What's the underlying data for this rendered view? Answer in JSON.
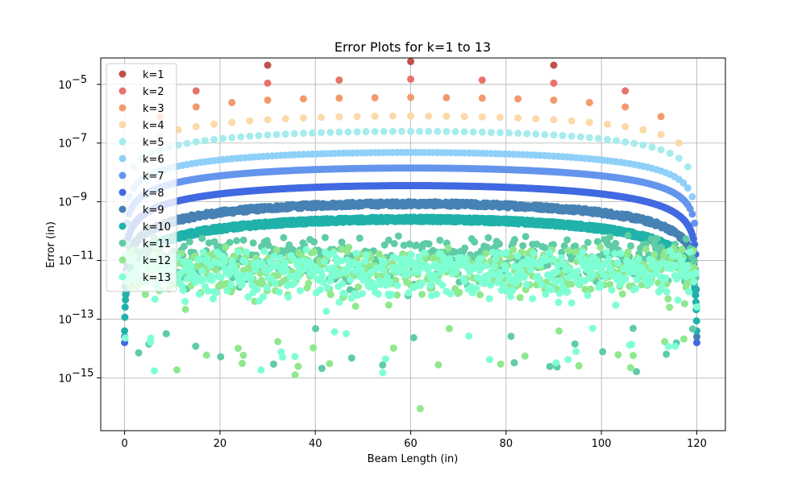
{
  "chart_data": {
    "type": "scatter",
    "title": "Error Plots for k=1 to 13",
    "xlabel": "Beam Length (in)",
    "ylabel": "Error (in)",
    "xlim": [
      -5,
      126
    ],
    "ylog_range": [
      -16.8,
      -4.1
    ],
    "x_ticks": [
      0,
      20,
      40,
      60,
      80,
      100,
      120
    ],
    "x_tick_labels": [
      "0",
      "20",
      "40",
      "60",
      "80",
      "100",
      "120"
    ],
    "y_ticks_exp": [
      -15,
      -13,
      -11,
      -9,
      -7,
      -5
    ],
    "y_tick_labels": [
      "10",
      "10",
      "10",
      "10",
      "10",
      "10"
    ],
    "y_tick_sups": [
      "−15",
      "−13",
      "−11",
      "−9",
      "−7",
      "−5"
    ],
    "grid": true,
    "legend_position": "top-left",
    "series": [
      {
        "name": "k=1",
        "color": "#c0504d",
        "step": 30,
        "peak": -4.8,
        "points": [
          [
            30,
            4.5e-05
          ],
          [
            60,
            6e-05
          ],
          [
            90,
            4.5e-05
          ]
        ]
      },
      {
        "name": "k=2",
        "color": "#e8726b",
        "step": 15,
        "peak": -5.0,
        "points": [
          [
            15,
            6e-06
          ],
          [
            30,
            1.1e-05
          ],
          [
            45,
            1.4e-05
          ],
          [
            60,
            1.5e-05
          ],
          [
            75,
            1.4e-05
          ],
          [
            90,
            1.1e-05
          ],
          [
            105,
            6e-06
          ]
        ]
      },
      {
        "name": "k=3",
        "color": "#f29a6e",
        "step": 7.5,
        "peak": -5.55,
        "points": [
          [
            7.5,
            8e-07
          ],
          [
            15,
            1.7e-06
          ],
          [
            22.5,
            2.4e-06
          ],
          [
            30,
            2.9e-06
          ],
          [
            37.5,
            3.2e-06
          ],
          [
            45,
            3.4e-06
          ],
          [
            52.5,
            3.5e-06
          ],
          [
            60,
            3.6e-06
          ],
          [
            67.5,
            3.5e-06
          ],
          [
            75,
            3.4e-06
          ],
          [
            82.5,
            3.2e-06
          ],
          [
            90,
            2.9e-06
          ],
          [
            97.5,
            2.4e-06
          ],
          [
            105,
            1.7e-06
          ],
          [
            112.5,
            8e-07
          ]
        ]
      },
      {
        "name": "k=4",
        "color": "#fbd9a8",
        "step": 3.75,
        "peak": -6.08
      },
      {
        "name": "k=5",
        "color": "#a6eced",
        "step": 1.875,
        "peak": -6.6
      },
      {
        "name": "k=6",
        "color": "#8fd0f8",
        "step": 0.9375,
        "peak": -7.32
      },
      {
        "name": "k=7",
        "color": "#6495ed",
        "step": 0.46875,
        "peak": -7.85
      },
      {
        "name": "k=8",
        "color": "#4169e1",
        "step": 0.234375,
        "peak": -8.45
      },
      {
        "name": "k=9",
        "color": "#4682b4",
        "step": 0.1171875,
        "peak": -9.07
      },
      {
        "name": "k=10",
        "color": "#20b2aa",
        "step": 0.05859375,
        "peak": -9.6
      },
      {
        "name": "k=11",
        "color": "#5fcca6",
        "step": 0.29,
        "peak": -10.1
      },
      {
        "name": "k=12",
        "color": "#90e88e",
        "step": 0.29,
        "peak": -10.5
      },
      {
        "name": "k=13",
        "color": "#7fffd4",
        "step": 0.21,
        "peak": -10.6
      }
    ]
  }
}
